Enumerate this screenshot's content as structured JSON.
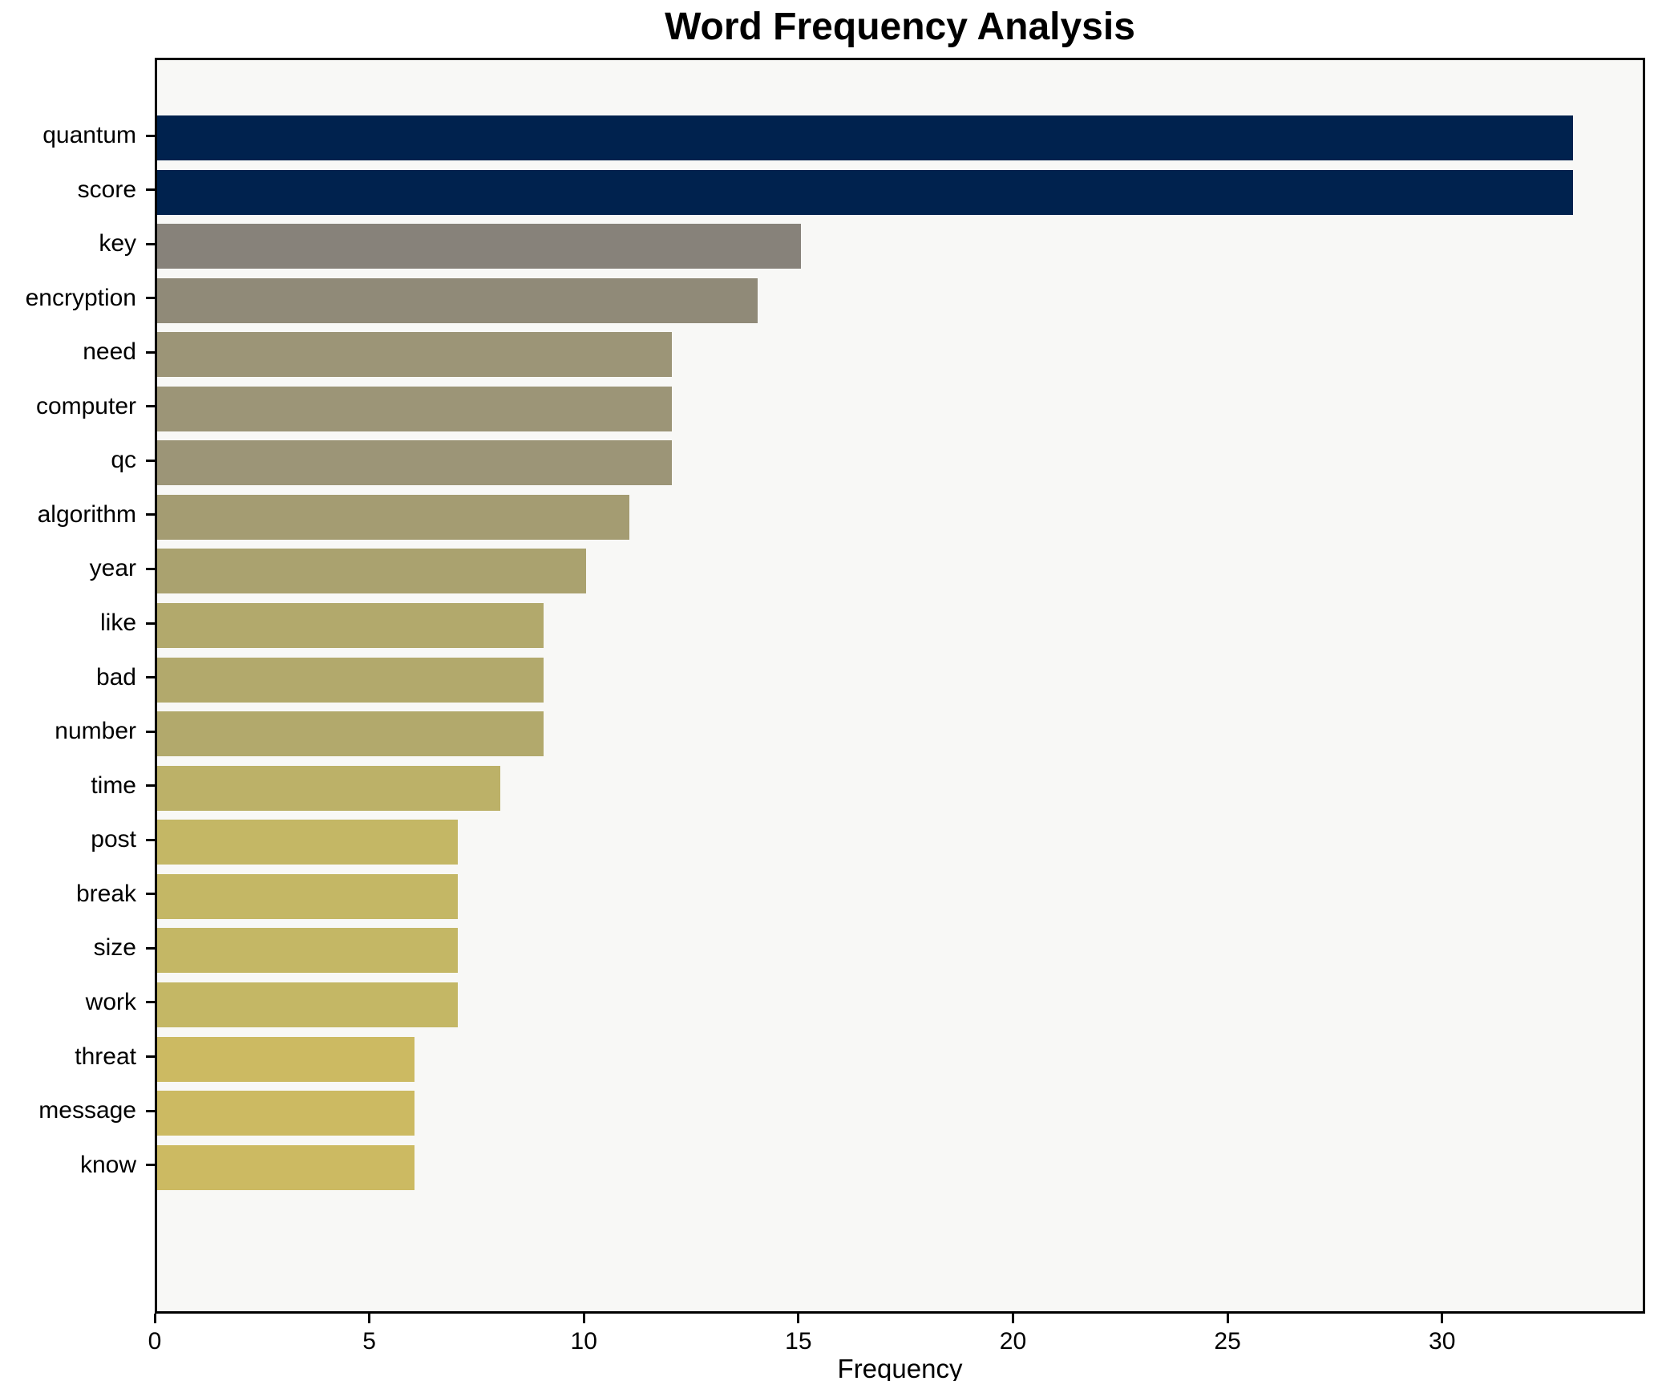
{
  "chart_data": {
    "type": "bar",
    "orientation": "horizontal",
    "title": "Word Frequency Analysis",
    "xlabel": "Frequency",
    "ylabel": "",
    "categories": [
      "quantum",
      "score",
      "key",
      "encryption",
      "need",
      "computer",
      "qc",
      "algorithm",
      "year",
      "like",
      "bad",
      "number",
      "time",
      "post",
      "break",
      "size",
      "work",
      "threat",
      "message",
      "know"
    ],
    "values": [
      33,
      33,
      15,
      14,
      12,
      12,
      12,
      11,
      10,
      9,
      9,
      9,
      8,
      7,
      7,
      7,
      7,
      6,
      6,
      6
    ],
    "bar_colors": [
      "#00224e",
      "#00224e",
      "#87827a",
      "#908a78",
      "#9c9577",
      "#9c9577",
      "#9c9577",
      "#a49c72",
      "#aaa26f",
      "#b2a96c",
      "#b2a96c",
      "#b2a96c",
      "#bcb168",
      "#c4b765",
      "#c4b765",
      "#c4b765",
      "#c4b765",
      "#ccba62",
      "#ccba62",
      "#ccba62"
    ],
    "x_ticks": [
      0,
      5,
      10,
      15,
      20,
      25,
      30
    ],
    "xlim": [
      0,
      34.62
    ],
    "grid": false,
    "legend": "none",
    "colormap": "cividis",
    "plot_background": "#f8f8f6",
    "figure_background": "#ffffff",
    "spine_color": "#000000"
  }
}
